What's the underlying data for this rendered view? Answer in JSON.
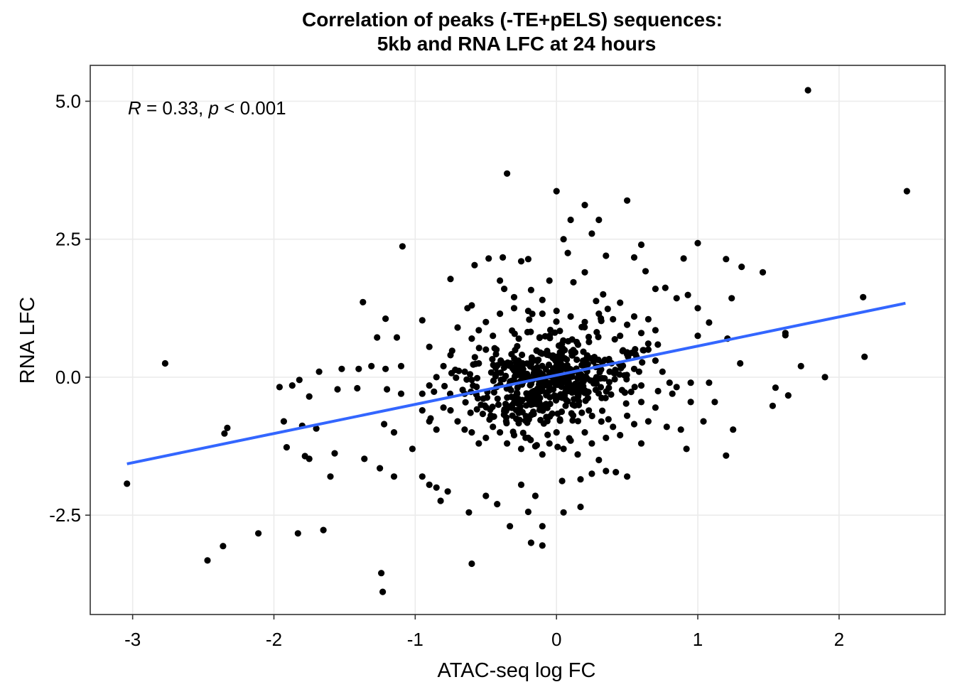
{
  "chart_data": {
    "type": "scatter",
    "title_line1": "Correlation of peaks (-TE+pELS) sequences:",
    "title_line2": "5kb and RNA LFC at 24 hours",
    "xlabel": "ATAC-seq log FC",
    "ylabel": "RNA LFC",
    "xlim": [
      -3.3,
      2.75
    ],
    "ylim": [
      -4.3,
      5.65
    ],
    "x_ticks": [
      -3,
      -2,
      -1,
      0,
      1,
      2
    ],
    "x_tick_labels": [
      "-3",
      "-2",
      "-1",
      "0",
      "1",
      "2"
    ],
    "y_ticks": [
      -2.5,
      0,
      2.5,
      5
    ],
    "y_tick_labels": [
      "-2.5",
      "0.0",
      "2.5",
      "5.0"
    ],
    "grid": true,
    "annotation": {
      "r_symbol": "R",
      "r_text": " = 0.33, ",
      "p_symbol": "p",
      "p_text": " < 0.001"
    },
    "regression": {
      "x": [
        -3.04,
        2.47
      ],
      "y": [
        -1.57,
        1.34
      ],
      "color": "#3366ff"
    },
    "point_color": "#000000",
    "points": [
      [
        1.78,
        5.2
      ],
      [
        -0.35,
        3.69
      ],
      [
        2.48,
        3.37
      ],
      [
        0.0,
        3.37
      ],
      [
        0.2,
        3.12
      ],
      [
        0.5,
        3.2
      ],
      [
        0.1,
        2.85
      ],
      [
        0.3,
        2.85
      ],
      [
        0.05,
        2.5
      ],
      [
        0.25,
        2.6
      ],
      [
        0.6,
        2.4
      ],
      [
        1.0,
        2.43
      ],
      [
        -1.09,
        2.37
      ],
      [
        0.08,
        2.25
      ],
      [
        0.35,
        2.2
      ],
      [
        0.55,
        2.17
      ],
      [
        -0.48,
        2.15
      ],
      [
        -0.38,
        2.17
      ],
      [
        -0.2,
        2.14
      ],
      [
        0.9,
        2.15
      ],
      [
        1.2,
        2.14
      ],
      [
        1.31,
        2.0
      ],
      [
        -0.58,
        2.03
      ],
      [
        -0.25,
        2.1
      ],
      [
        1.46,
        1.9
      ],
      [
        0.63,
        1.92
      ],
      [
        -0.75,
        1.78
      ],
      [
        0.2,
        1.9
      ],
      [
        -0.4,
        1.75
      ],
      [
        0.7,
        1.6
      ],
      [
        0.77,
        1.62
      ],
      [
        -0.37,
        1.6
      ],
      [
        0.85,
        1.43
      ],
      [
        0.93,
        1.49
      ],
      [
        1.24,
        1.43
      ],
      [
        2.17,
        1.45
      ],
      [
        -0.05,
        1.75
      ],
      [
        0.12,
        1.72
      ],
      [
        -0.18,
        1.58
      ],
      [
        -0.3,
        1.45
      ],
      [
        0.33,
        1.5
      ],
      [
        -1.37,
        1.36
      ],
      [
        -0.6,
        1.3
      ],
      [
        0.45,
        1.35
      ],
      [
        -0.1,
        1.4
      ],
      [
        0.28,
        1.38
      ],
      [
        -1.21,
        1.06
      ],
      [
        -0.95,
        1.03
      ],
      [
        -0.63,
        1.25
      ],
      [
        0.55,
        1.1
      ],
      [
        0.65,
        1.05
      ],
      [
        1.0,
        1.25
      ],
      [
        1.08,
        0.99
      ],
      [
        -1.27,
        0.72
      ],
      [
        -1.13,
        0.72
      ],
      [
        -0.9,
        0.55
      ],
      [
        -0.55,
        0.85
      ],
      [
        0.7,
        0.85
      ],
      [
        1.0,
        0.75
      ],
      [
        1.21,
        0.7
      ],
      [
        1.62,
        0.76
      ],
      [
        1.62,
        0.8
      ],
      [
        -2.77,
        0.25
      ],
      [
        -1.68,
        0.1
      ],
      [
        -1.52,
        0.15
      ],
      [
        -1.4,
        0.15
      ],
      [
        -1.31,
        0.2
      ],
      [
        -1.21,
        0.15
      ],
      [
        -1.1,
        0.2
      ],
      [
        -1.82,
        -0.05
      ],
      [
        -1.87,
        -0.15
      ],
      [
        -1.96,
        -0.18
      ],
      [
        -1.55,
        -0.22
      ],
      [
        -1.41,
        -0.2
      ],
      [
        -1.75,
        -0.35
      ],
      [
        -1.1,
        -0.3
      ],
      [
        -0.95,
        -0.3
      ],
      [
        -1.2,
        -0.22
      ],
      [
        0.85,
        -0.18
      ],
      [
        0.95,
        -0.1
      ],
      [
        1.08,
        -0.1
      ],
      [
        1.3,
        0.25
      ],
      [
        1.73,
        0.2
      ],
      [
        1.55,
        -0.19
      ],
      [
        1.64,
        -0.33
      ],
      [
        1.53,
        -0.52
      ],
      [
        1.12,
        -0.45
      ],
      [
        0.95,
        -0.45
      ],
      [
        2.18,
        0.37
      ],
      [
        1.9,
        0.0
      ],
      [
        -1.93,
        -0.8
      ],
      [
        -2.33,
        -0.92
      ],
      [
        -2.35,
        -1.02
      ],
      [
        -1.8,
        -0.88
      ],
      [
        -1.7,
        -0.93
      ],
      [
        -1.91,
        -1.27
      ],
      [
        -1.78,
        -1.43
      ],
      [
        -1.75,
        -1.48
      ],
      [
        -1.57,
        -1.38
      ],
      [
        -1.36,
        -1.48
      ],
      [
        -1.6,
        -1.8
      ],
      [
        -1.22,
        -0.85
      ],
      [
        -1.15,
        -1.0
      ],
      [
        -1.02,
        -1.3
      ],
      [
        -1.25,
        -1.65
      ],
      [
        -1.15,
        -1.8
      ],
      [
        -0.95,
        -1.8
      ],
      [
        -0.9,
        -1.95
      ],
      [
        -0.85,
        -2.0
      ],
      [
        -0.77,
        -2.07
      ],
      [
        -0.82,
        -2.24
      ],
      [
        -0.62,
        -2.45
      ],
      [
        -0.42,
        -2.3
      ],
      [
        -0.33,
        -2.7
      ],
      [
        -0.18,
        -3.0
      ],
      [
        -0.1,
        -2.7
      ],
      [
        -0.1,
        -3.05
      ],
      [
        0.05,
        -2.45
      ],
      [
        -0.2,
        -2.44
      ],
      [
        -0.5,
        -2.15
      ],
      [
        0.17,
        -2.35
      ],
      [
        -0.25,
        -1.95
      ],
      [
        -0.15,
        -2.15
      ],
      [
        0.04,
        -1.88
      ],
      [
        0.17,
        -1.85
      ],
      [
        0.25,
        -1.75
      ],
      [
        0.35,
        -1.7
      ],
      [
        0.42,
        -1.72
      ],
      [
        0.5,
        -1.8
      ],
      [
        0.6,
        -1.2
      ],
      [
        0.65,
        -0.8
      ],
      [
        0.78,
        -0.9
      ],
      [
        0.88,
        -0.95
      ],
      [
        0.92,
        -1.3
      ],
      [
        1.04,
        -0.8
      ],
      [
        1.2,
        -1.42
      ],
      [
        1.25,
        -0.95
      ],
      [
        -2.47,
        -3.32
      ],
      [
        -2.36,
        -3.06
      ],
      [
        -2.11,
        -2.83
      ],
      [
        -1.83,
        -2.83
      ],
      [
        -1.65,
        -2.77
      ],
      [
        -1.24,
        -3.55
      ],
      [
        -1.23,
        -3.89
      ],
      [
        -0.6,
        -3.38
      ],
      [
        -3.04,
        -1.93
      ],
      [
        -0.95,
        -0.6
      ],
      [
        -0.9,
        -0.8
      ],
      [
        -0.85,
        -0.95
      ],
      [
        -0.8,
        -0.55
      ],
      [
        -0.75,
        -0.6
      ],
      [
        -0.7,
        -0.8
      ],
      [
        -0.65,
        -0.95
      ],
      [
        -0.6,
        -1.0
      ],
      [
        -0.55,
        -1.2
      ],
      [
        -0.5,
        -1.1
      ],
      [
        -0.45,
        -0.9
      ],
      [
        -0.4,
        -1.0
      ],
      [
        -0.35,
        -1.2
      ],
      [
        -0.3,
        -1.05
      ],
      [
        -0.25,
        -1.3
      ],
      [
        -0.2,
        -1.1
      ],
      [
        -0.15,
        -1.25
      ],
      [
        -0.1,
        -1.4
      ],
      [
        -0.05,
        -1.2
      ],
      [
        0.0,
        -1.0
      ],
      [
        0.05,
        -1.3
      ],
      [
        0.1,
        -1.15
      ],
      [
        0.15,
        -1.4
      ],
      [
        0.2,
        -1.0
      ],
      [
        0.25,
        -1.2
      ],
      [
        0.3,
        -1.5
      ],
      [
        0.35,
        -1.1
      ],
      [
        0.4,
        -0.9
      ],
      [
        0.45,
        -1.05
      ],
      [
        0.5,
        -0.7
      ],
      [
        0.55,
        -0.85
      ],
      [
        -0.7,
        0.9
      ],
      [
        -0.6,
        0.7
      ],
      [
        -0.5,
        1.0
      ],
      [
        -0.4,
        1.15
      ],
      [
        -0.3,
        1.25
      ],
      [
        -0.2,
        1.2
      ],
      [
        -0.1,
        1.15
      ],
      [
        0.0,
        1.2
      ],
      [
        0.1,
        1.1
      ],
      [
        0.2,
        1.0
      ],
      [
        0.3,
        1.15
      ],
      [
        0.4,
        1.05
      ],
      [
        0.5,
        0.95
      ],
      [
        0.6,
        0.8
      ],
      [
        -0.75,
        0.4
      ],
      [
        -0.8,
        0.2
      ],
      [
        -0.85,
        0.0
      ],
      [
        -0.9,
        -0.15
      ],
      [
        0.65,
        0.5
      ],
      [
        0.7,
        0.3
      ],
      [
        0.75,
        0.1
      ],
      [
        0.8,
        -0.1
      ],
      [
        0.82,
        -0.3
      ],
      [
        0.7,
        -0.55
      ],
      [
        -0.65,
        -0.3
      ],
      [
        -0.6,
        -0.05
      ],
      [
        -0.55,
        0.25
      ],
      [
        -0.5,
        0.5
      ],
      [
        -0.45,
        0.75
      ],
      [
        0.45,
        0.75
      ],
      [
        0.5,
        0.45
      ],
      [
        0.55,
        0.15
      ],
      [
        0.6,
        -0.15
      ],
      [
        0.6,
        -0.45
      ]
    ],
    "dense_cluster": {
      "center": [
        -0.05,
        -0.05
      ],
      "spread": [
        0.28,
        0.42
      ],
      "count": 520
    }
  }
}
